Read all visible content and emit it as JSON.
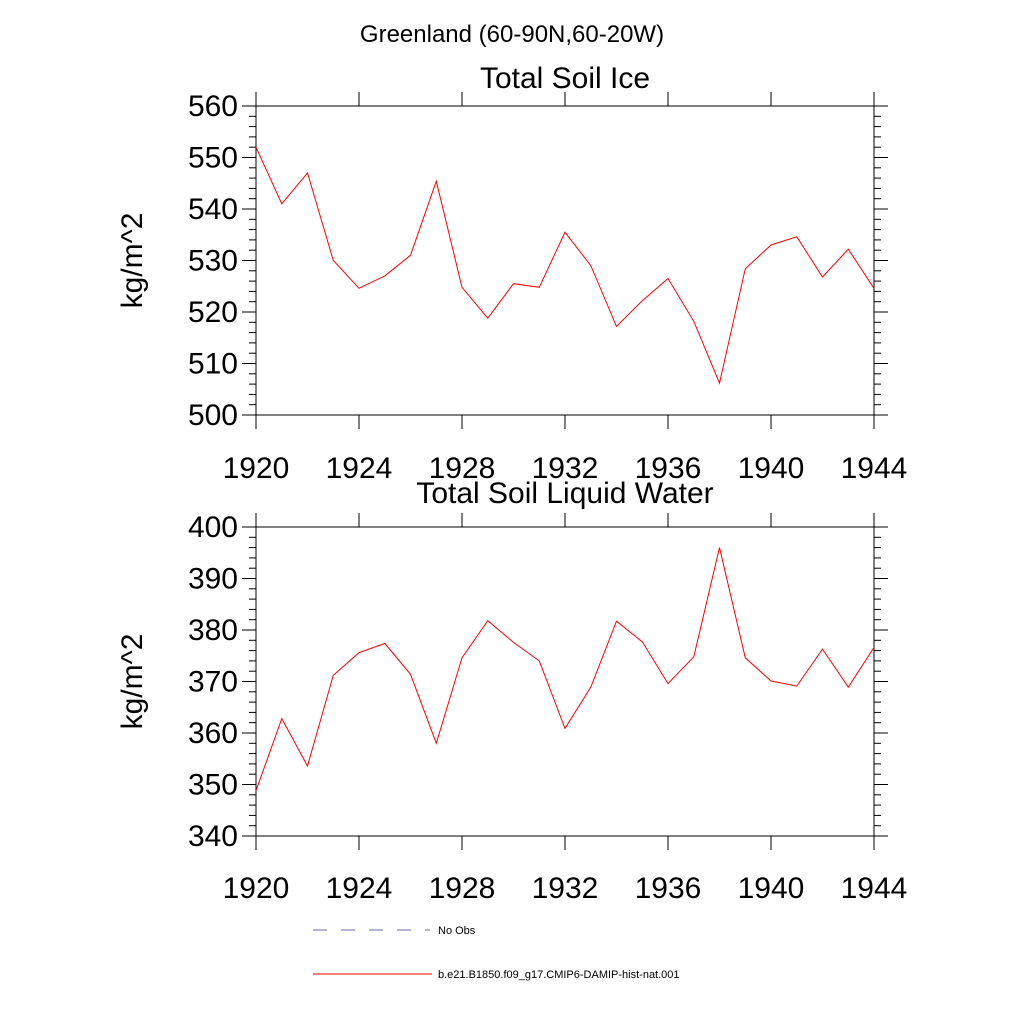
{
  "figure": {
    "title": "Greenland (60-90N,60-20W)"
  },
  "chart_data": [
    {
      "type": "line",
      "title": "Total Soil Ice",
      "xlabel": "",
      "ylabel": "kg/m^2",
      "xlim": [
        1920,
        1944
      ],
      "ylim": [
        500,
        560
      ],
      "xticks": [
        "1920",
        "1924",
        "1928",
        "1932",
        "1936",
        "1940",
        "1944"
      ],
      "yticks": [
        "500",
        "510",
        "520",
        "530",
        "540",
        "550",
        "560"
      ],
      "grid": false,
      "series": [
        {
          "name": "b.e21.B1850.f09_g17.CMIP6-DAMIP-hist-nat.001",
          "color": "#ff0000",
          "x": [
            1920,
            1921,
            1922,
            1923,
            1924,
            1925,
            1926,
            1927,
            1928,
            1929,
            1930,
            1931,
            1932,
            1933,
            1934,
            1935,
            1936,
            1937,
            1938,
            1939,
            1940,
            1941,
            1942,
            1943,
            1944
          ],
          "values": [
            552,
            541,
            547,
            530,
            524.6,
            527,
            531,
            545.4,
            524.8,
            518.8,
            525.5,
            524.8,
            535.5,
            529,
            517.2,
            522.2,
            526.5,
            518.2,
            506.2,
            528.4,
            533,
            534.6,
            526.8,
            532.2,
            524.6
          ]
        }
      ]
    },
    {
      "type": "line",
      "title": "Total Soil Liquid Water",
      "xlabel": "",
      "ylabel": "kg/m^2",
      "xlim": [
        1920,
        1944
      ],
      "ylim": [
        340,
        400
      ],
      "xticks": [
        "1920",
        "1924",
        "1928",
        "1932",
        "1936",
        "1940",
        "1944"
      ],
      "yticks": [
        "340",
        "350",
        "360",
        "370",
        "380",
        "390",
        "400"
      ],
      "grid": false,
      "series": [
        {
          "name": "b.e21.B1850.f09_g17.CMIP6-DAMIP-hist-nat.001",
          "color": "#ff0000",
          "x": [
            1920,
            1921,
            1922,
            1923,
            1924,
            1925,
            1926,
            1927,
            1928,
            1929,
            1930,
            1931,
            1932,
            1933,
            1934,
            1935,
            1936,
            1937,
            1938,
            1939,
            1940,
            1941,
            1942,
            1943,
            1944
          ],
          "values": [
            348.8,
            362.8,
            353.6,
            371.2,
            375.6,
            377.4,
            371.4,
            358,
            374.6,
            381.8,
            377.6,
            374,
            360.9,
            368.9,
            381.7,
            377.7,
            369.6,
            374.8,
            396,
            374.6,
            370.1,
            369.1,
            376.3,
            368.9,
            376.6
          ]
        }
      ]
    }
  ],
  "legend": {
    "placement": "bottom",
    "entries": [
      {
        "label": "No Obs",
        "color": "#6a6ab0",
        "style": "dashed"
      },
      {
        "label": "b.e21.B1850.f09_g17.CMIP6-DAMIP-hist-nat.001",
        "color": "#ff0000",
        "style": "solid"
      }
    ]
  }
}
